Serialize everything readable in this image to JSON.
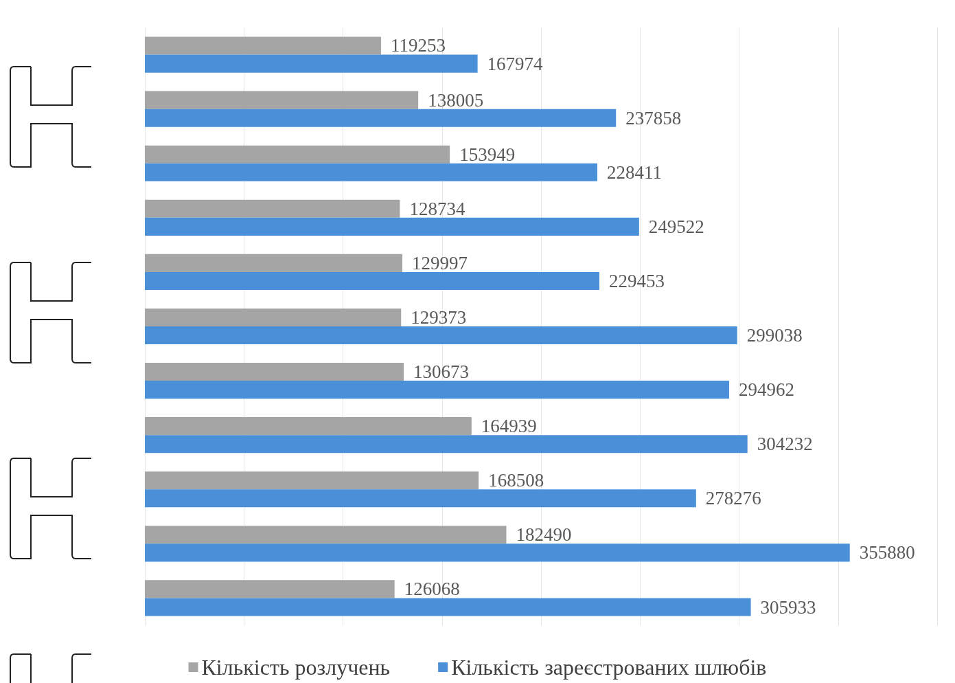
{
  "chart_data": {
    "type": "bar",
    "orientation": "horizontal",
    "categories": [
      null,
      null,
      null,
      null,
      null,
      null,
      null,
      null,
      null,
      null,
      null
    ],
    "series": [
      {
        "name": "Кількість розлучень",
        "color": "#a5a5a5",
        "values": [
          119253,
          138005,
          153949,
          128734,
          129997,
          129373,
          130673,
          164939,
          168508,
          182490,
          126068
        ]
      },
      {
        "name": "Кількість зареєстрованих шлюбів",
        "color": "#4a90d9",
        "values": [
          167974,
          237858,
          228411,
          249522,
          229453,
          299038,
          294962,
          304232,
          278276,
          355880,
          305933
        ]
      }
    ],
    "xlim": [
      0,
      400000
    ],
    "xticks": [
      {
        "value": 0,
        "label": null
      },
      {
        "value": 50000,
        "label": null
      },
      {
        "value": 100000,
        "label": null
      },
      {
        "value": 150000,
        "label": null
      },
      {
        "value": 200000,
        "label": null
      },
      {
        "value": 250000,
        "label": null
      },
      {
        "value": 300000,
        "label": null
      },
      {
        "value": 350000,
        "label": null
      },
      {
        "value": 400000,
        "label": null
      }
    ],
    "grid": "x",
    "data_labels": true,
    "legend": "bottom"
  }
}
